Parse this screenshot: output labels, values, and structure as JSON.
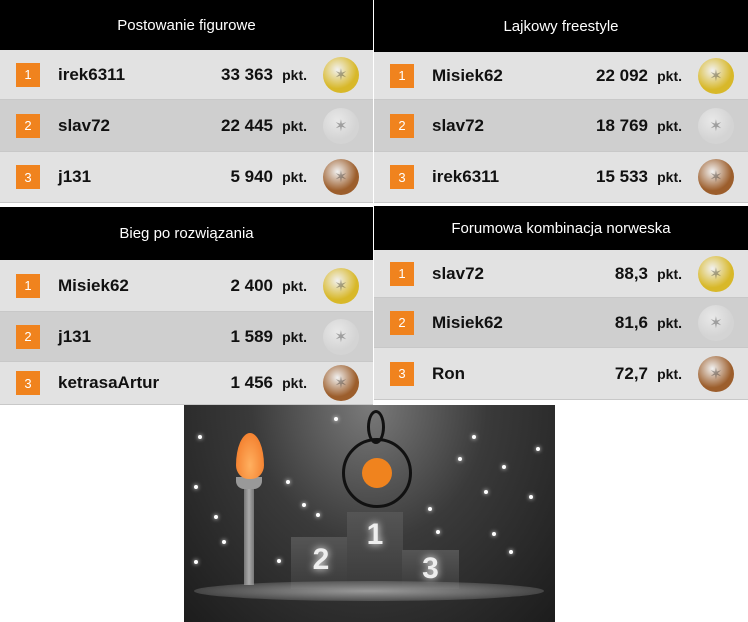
{
  "unit": "pkt.",
  "panels": [
    {
      "title": "Postowanie figurowe",
      "entries": [
        {
          "rank": "1",
          "name": "irek6311",
          "score": "33 363",
          "medal": "gold"
        },
        {
          "rank": "2",
          "name": "slav72",
          "score": "22 445",
          "medal": "silver"
        },
        {
          "rank": "3",
          "name": "j131",
          "score": "5 940",
          "medal": "bronze"
        }
      ]
    },
    {
      "title": "Lajkowy freestyle",
      "entries": [
        {
          "rank": "1",
          "name": "Misiek62",
          "score": "22 092",
          "medal": "gold"
        },
        {
          "rank": "2",
          "name": "slav72",
          "score": "18 769",
          "medal": "silver"
        },
        {
          "rank": "3",
          "name": "irek6311",
          "score": "15 533",
          "medal": "bronze"
        }
      ]
    },
    {
      "title": "Bieg po rozwiązania",
      "entries": [
        {
          "rank": "1",
          "name": "Misiek62",
          "score": "2 400",
          "medal": "gold"
        },
        {
          "rank": "2",
          "name": "j131",
          "score": "1 589",
          "medal": "silver"
        },
        {
          "rank": "3",
          "name": "ketrasaArtur",
          "score": "1 456",
          "medal": "bronze"
        }
      ]
    },
    {
      "title": "Forumowa kombinacja norweska",
      "entries": [
        {
          "rank": "1",
          "name": "slav72",
          "score": "88,3",
          "medal": "gold"
        },
        {
          "rank": "2",
          "name": "Misiek62",
          "score": "81,6",
          "medal": "silver"
        },
        {
          "rank": "3",
          "name": "Ron",
          "score": "72,7",
          "medal": "bronze"
        }
      ]
    }
  ],
  "podium": {
    "first": "1",
    "second": "2",
    "third": "3"
  },
  "colors": {
    "accent": "#f0831e",
    "gold": "#d8b829",
    "silver": "#d4d4d4",
    "bronze": "#9c5e2c"
  }
}
